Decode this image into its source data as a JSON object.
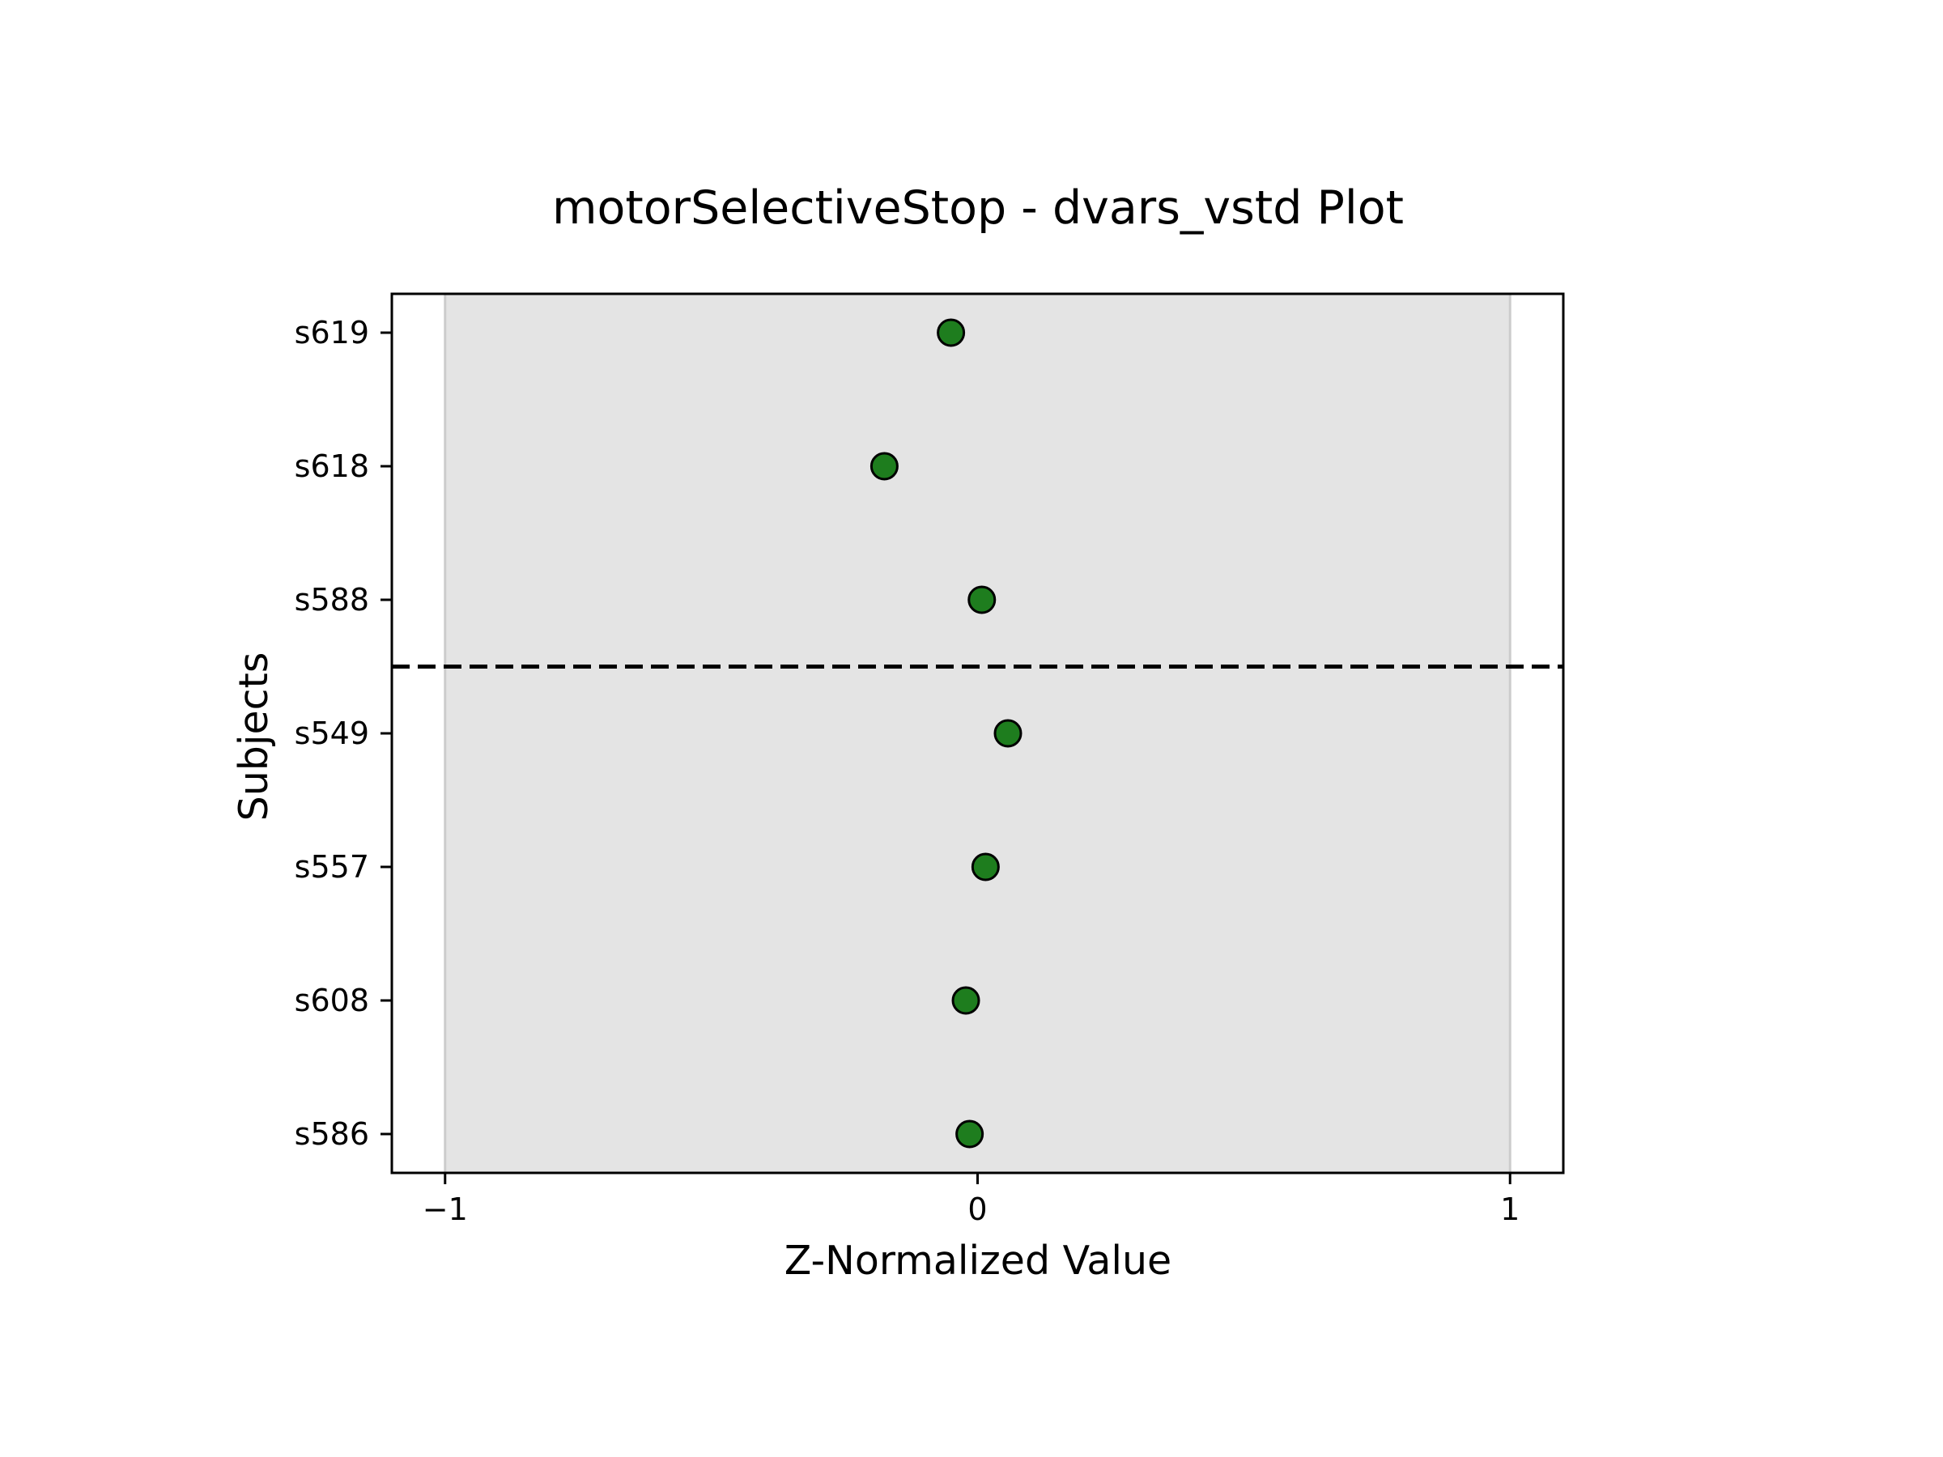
{
  "chart_data": {
    "type": "scatter",
    "title": "motorSelectiveStop - dvars_vstd Plot",
    "xlabel": "Z-Normalized Value",
    "ylabel": "Subjects",
    "xlim": [
      -1.1,
      1.1
    ],
    "x_ticks": [
      -1,
      0,
      1
    ],
    "x_tick_labels": [
      "−1",
      "0",
      "1"
    ],
    "categories": [
      "s619",
      "s618",
      "s588",
      "s549",
      "s557",
      "s608",
      "s586"
    ],
    "values": [
      -0.05,
      -0.175,
      0.008,
      0.057,
      0.015,
      -0.022,
      -0.015
    ],
    "shaded_band": [
      -1,
      1
    ],
    "separator_between": [
      "s588",
      "s549"
    ],
    "grid": false,
    "legend": "none",
    "colors": {
      "marker_fill": "#1e7d1e",
      "marker_edge": "#000000",
      "band_fill": "#e4e4e4",
      "band_edge": "#cccccc",
      "separator": "#000000"
    }
  }
}
